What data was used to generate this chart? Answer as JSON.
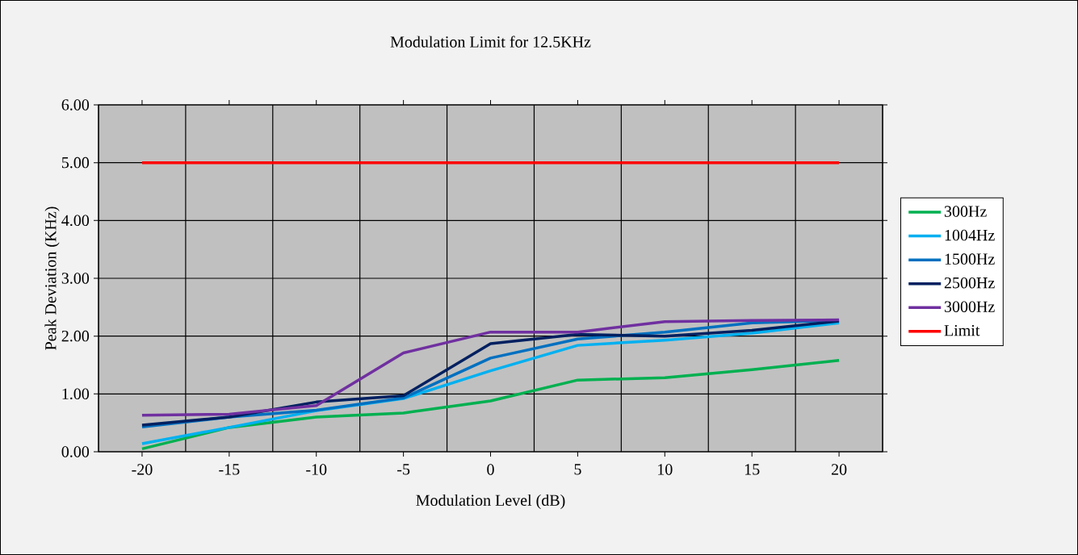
{
  "chart_data": {
    "type": "line",
    "title": "Modulation Limit for 12.5KHz",
    "xlabel": "Modulation Level (dB)",
    "ylabel": "Peak Deviation (KHz)",
    "categories": [
      "-20",
      "-15",
      "-10",
      "-5",
      "0",
      "5",
      "10",
      "15",
      "20"
    ],
    "series": [
      {
        "name": "300Hz",
        "color": "#00b050",
        "values": [
          0.05,
          0.42,
          0.6,
          0.67,
          0.88,
          1.24,
          1.28,
          1.42,
          1.58
        ]
      },
      {
        "name": "1004Hz",
        "color": "#00b0f0",
        "values": [
          0.14,
          0.42,
          0.71,
          0.92,
          1.4,
          1.84,
          1.93,
          2.05,
          2.23
        ]
      },
      {
        "name": "1500Hz",
        "color": "#0070c0",
        "values": [
          0.43,
          0.6,
          0.72,
          0.93,
          1.62,
          1.95,
          2.07,
          2.23,
          2.27
        ]
      },
      {
        "name": "2500Hz",
        "color": "#002060",
        "values": [
          0.46,
          0.6,
          0.86,
          0.97,
          1.87,
          2.03,
          2.0,
          2.1,
          2.26
        ]
      },
      {
        "name": "3000Hz",
        "color": "#7030a0",
        "values": [
          0.63,
          0.65,
          0.8,
          1.71,
          2.07,
          2.07,
          2.25,
          2.27,
          2.28
        ]
      },
      {
        "name": "Limit",
        "color": "#ff0000",
        "values": [
          5,
          5,
          5,
          5,
          5,
          5,
          5,
          5,
          5
        ]
      }
    ],
    "ylim": [
      0,
      6
    ],
    "yticks": [
      {
        "value": 0,
        "label": "0.00"
      },
      {
        "value": 1,
        "label": "1.00"
      },
      {
        "value": 2,
        "label": "2.00"
      },
      {
        "value": 3,
        "label": "3.00"
      },
      {
        "value": 4,
        "label": "4.00"
      },
      {
        "value": 5,
        "label": "5.00"
      },
      {
        "value": 6,
        "label": "6.00"
      }
    ],
    "grid": true,
    "legend": "right"
  }
}
